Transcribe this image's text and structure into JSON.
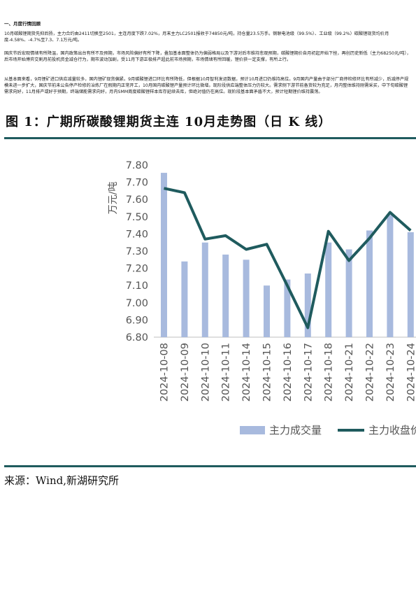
{
  "section_title": "一、月度行情回顾",
  "paragraphs": [
    "10月碳酸锂期货先抑后扬，主力合约由2411切换至2501，主连月度下跌7.02%，月末主力LC2501报收于74850元/吨，持仓量23.5万手。钢联电池级（99.5%）、工业级（99.2%）碳酸锂现货均价月度-4.58%、-4.7%至7.3、7.1万元/吨。",
    "国庆节后宏观情绪有所降温，国内政策出台有所不及预期，市场风险偏好有所下降，叠加基本面整体仍为偏弱格局以及下游对后市维持悲观预期，碳酸锂期价自月初起开始下挫，再创历史新低（主力68250元/吨），后市场开始博弈交割月前投机资金减仓行为，期市波动加剧，受11月下游正极排产超此前市场预期，市场情绪有所回暖，锂价获一定支撑，有所上行。",
    "从基本面来看，9月锂矿进口供应减量较多，国内锂矿现货偏紧。9月碳酸锂进口环比有所降低，但根据10月智利发运数据，预计10月进口仍维持高位。9月国内产量由于部分厂商停检修环比有所减少，后减停产规模未进一步扩大，国庆节前未公告停产检修的冶炼厂在假期内正常开工，10月国内碳酸锂产量预计环比微增。现阶段供应端整体压力仍较大。需求侧下游节前备货较为充足，月内整体维持刚需采买，中下旬碳酸锂需求向好，11月排产或好于预期，终端储能需求向好，月内SMM周度碳酸锂样本库存延续去库，但绝对值仍在高位。现阶段基本面矛盾不大，预计短期锂价维持震荡。"
  ],
  "figure_title": "图 1：广期所碳酸锂期货主连 10月走势图（日 K 线）",
  "source_text": "来源：Wind,新湖研究所",
  "colors": {
    "bar": "#a8bade",
    "line": "#1f5b5e",
    "rule": "#1f5b5e"
  },
  "chart_data": {
    "type": "bar+line",
    "ylabel": "万元/吨",
    "ylim": [
      6.8,
      7.8
    ],
    "yticks": [
      "7.80",
      "7.70",
      "7.60",
      "7.50",
      "7.40",
      "7.30",
      "7.20",
      "7.10",
      "7.00",
      "6.90",
      "6.80"
    ],
    "categories": [
      "2024-10-08",
      "2024-10-09",
      "2024-10-10",
      "2024-10-11",
      "2024-10-14",
      "2024-10-15",
      "2024-10-16",
      "2024-10-17",
      "2024-10-18",
      "2024-10-21",
      "2024-10-22",
      "2024-10-23",
      "2024-10-24"
    ],
    "series": [
      {
        "name": "主力成交量",
        "kind": "bar",
        "values": [
          7.755,
          7.24,
          7.35,
          7.28,
          7.25,
          7.1,
          7.135,
          7.17,
          7.35,
          7.31,
          7.42,
          7.51,
          7.41
        ]
      },
      {
        "name": "主力收盘价",
        "kind": "line",
        "values": [
          7.665,
          7.64,
          7.37,
          7.39,
          7.31,
          7.34,
          7.1,
          6.855,
          7.415,
          7.245,
          7.375,
          7.525,
          7.42
        ]
      }
    ],
    "grid": false,
    "legend": "bottom"
  }
}
